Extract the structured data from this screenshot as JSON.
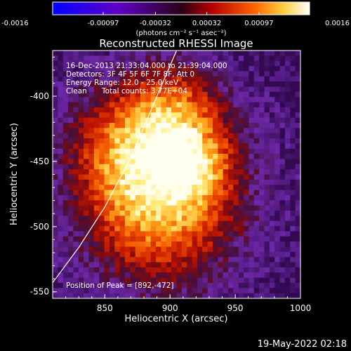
{
  "colorbar": {
    "ticks": [
      "-0.0016",
      "-0.00097",
      "-0.00032",
      "0.00032",
      "0.00097",
      "0.0016"
    ],
    "range": [
      -0.0016,
      0.0016
    ],
    "unit_label": "(photons cm⁻² s⁻¹ asec⁻²)"
  },
  "chart_data": {
    "type": "heatmap",
    "title": "Reconstructed RHESSI Image",
    "xlabel": "Heliocentric X (arcsec)",
    "ylabel": "Heliocentric Y (arcsec)",
    "xlim": [
      810,
      1000
    ],
    "ylim": [
      -555,
      -365
    ],
    "xticks": [
      850,
      900,
      950,
      1000
    ],
    "yticks": [
      -400,
      -450,
      -500,
      -550
    ],
    "peak": {
      "x": 892,
      "y": -472
    },
    "annotations": {
      "time": "16-Dec-2013 21:33:04.000 to 21:39:04.000",
      "detectors": "Detectors: 3F 4F 5F 6F 7F 8F, Att 0",
      "energy": "Energy Range: 12.0 - 25.0 keV",
      "method": "Clean",
      "counts": "Total counts: 3.77E+04",
      "peak_text": "Position of Peak = [892,-472]"
    },
    "limb": [
      [
        810,
        -543
      ],
      [
        830,
        -516
      ],
      [
        850,
        -485
      ],
      [
        870,
        -447
      ],
      [
        890,
        -400
      ],
      [
        905,
        -365
      ]
    ]
  },
  "footer": {
    "date": "19-May-2022 02:18"
  }
}
